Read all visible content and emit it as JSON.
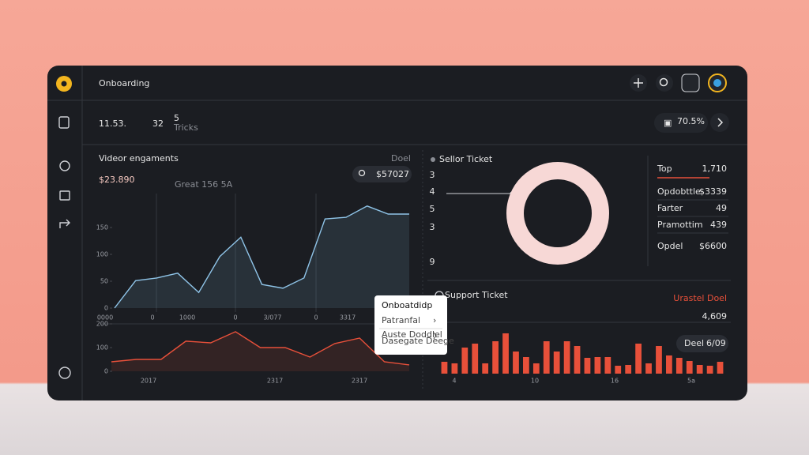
{
  "app": {
    "title": "Onboarding"
  },
  "stats": {
    "value": "11.53.",
    "count": "32",
    "sup": "5",
    "unit": "Tricks",
    "percent": "70.5%"
  },
  "video": {
    "title": "Videor engaments",
    "corner": "Doel",
    "amount": "$23.890",
    "note": "Great 156 5A",
    "search": "$57027"
  },
  "seller_legend": [
    {
      "label": "Top",
      "value": "1,710"
    },
    {
      "label": "Opdobttle",
      "value": "$3339"
    },
    {
      "label": "Farter",
      "value": "49"
    },
    {
      "label": "Pramottim",
      "value": "439"
    },
    {
      "label": "Opdel",
      "value": "$6600"
    }
  ],
  "support": {
    "note": "Urastel Doel",
    "total": "4,609",
    "pill_label": "Deel",
    "pill_value": "6/09"
  },
  "popup": {
    "title": "Onboatdidp",
    "item1": "Patranfal",
    "item2": "Auste Doddlel",
    "item3": "Dasegate Deege"
  },
  "chart_data": [
    {
      "type": "line",
      "color": "#8fc4e8",
      "values": [
        0,
        51,
        56,
        65,
        29,
        96,
        132,
        44,
        37,
        56,
        166,
        169,
        190,
        175,
        175
      ],
      "ylim": [
        0,
        200
      ],
      "yticks": [
        0,
        50,
        100,
        150
      ],
      "x_labels": [
        "0000",
        "0",
        "1000",
        "0",
        "3/077",
        "0",
        "3317"
      ]
    },
    {
      "type": "line",
      "color": "#e8503a",
      "values": [
        40,
        50,
        50,
        127,
        120,
        167,
        100,
        100,
        60,
        117,
        140,
        40,
        27
      ],
      "ylim": [
        0,
        200
      ],
      "yticks": [
        0,
        100,
        200
      ],
      "x_labels": [
        "2017",
        "2317",
        "2317"
      ]
    },
    {
      "type": "donut",
      "title": "Sellor Ticket",
      "color": "#f7d8d6",
      "values": [
        100
      ],
      "side_labels": [
        "3",
        "4",
        "5",
        "3",
        "9"
      ]
    },
    {
      "type": "bar",
      "title": "Support Ticket",
      "color": "#e8503a",
      "values": [
        15,
        13,
        33,
        38,
        13,
        41,
        51,
        28,
        21,
        13,
        41,
        28,
        41,
        35,
        20,
        21,
        21,
        10,
        11,
        38,
        13,
        35,
        23,
        20,
        16,
        11,
        10,
        15
      ],
      "ylim": [
        0,
        60
      ],
      "x_labels": [
        "4",
        "10",
        "16",
        "5a"
      ]
    }
  ]
}
